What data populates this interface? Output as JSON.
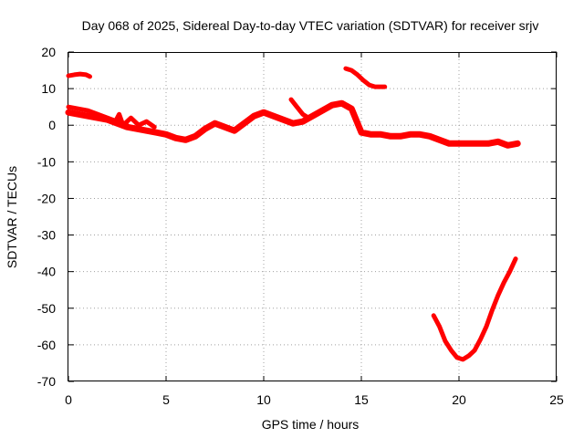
{
  "chart_data": {
    "type": "line",
    "title": "Day 068 of 2025, Sidereal Day-to-day VTEC variation (SDTVAR) for receiver srjv",
    "xlabel": "GPS time / hours",
    "ylabel": "SDTVAR / TECUs",
    "xlim": [
      0,
      25
    ],
    "ylim": [
      -70,
      20
    ],
    "xticks": [
      0,
      5,
      10,
      15,
      20,
      25
    ],
    "yticks": [
      -70,
      -60,
      -50,
      -40,
      -30,
      -20,
      -10,
      0,
      10,
      20
    ],
    "grid": true,
    "series_color": "#ff0000",
    "series": [
      {
        "name": "main-trace",
        "x": [
          0,
          0.5,
          1,
          1.5,
          2,
          2.5,
          3,
          3.5,
          4,
          4.5,
          5,
          5.5,
          6,
          6.5,
          7,
          7.5,
          8,
          8.5,
          9,
          9.5,
          10,
          10.5,
          11,
          11.5,
          12,
          12.5,
          13,
          13.5,
          14,
          14.5,
          15,
          15.5,
          16,
          16.5,
          17,
          17.5,
          18,
          18.5,
          19,
          19.5,
          20,
          20.5,
          21,
          21.5,
          22,
          22.5,
          23
        ],
        "y": [
          3.5,
          3,
          2.5,
          2,
          1.5,
          0.5,
          -0.5,
          -1,
          -1.5,
          -2,
          -2.5,
          -3.5,
          -4,
          -3,
          -1,
          0.5,
          -0.5,
          -1.5,
          0.5,
          2.5,
          3.5,
          2.5,
          1.5,
          0.5,
          1,
          2.5,
          4,
          5.5,
          6,
          4.5,
          -2,
          -2.5,
          -2.5,
          -3,
          -3,
          -2.5,
          -2.5,
          -3,
          -4,
          -5,
          -5,
          -5,
          -5,
          -5,
          -4.5,
          -5.5,
          -5
        ]
      },
      {
        "name": "upper-band",
        "x": [
          0,
          0.5,
          1,
          1.5,
          2,
          2.5,
          3
        ],
        "y": [
          5,
          4.5,
          4,
          3,
          2,
          1,
          0
        ]
      },
      {
        "name": "spike-early",
        "x": [
          2.4,
          2.6,
          2.8,
          3.2,
          3.6,
          4,
          4.4
        ],
        "y": [
          1,
          3,
          0,
          2,
          0,
          1,
          -0.5
        ]
      },
      {
        "name": "segment-start",
        "x": [
          0,
          0.3,
          0.6,
          0.9,
          1.1
        ],
        "y": [
          13.5,
          13.8,
          14,
          13.8,
          13.3
        ]
      },
      {
        "name": "segment-spike-11",
        "x": [
          11.4,
          11.7,
          12,
          12.3
        ],
        "y": [
          7,
          5,
          3,
          2
        ]
      },
      {
        "name": "segment-14-16",
        "x": [
          14.2,
          14.5,
          14.8,
          15.1,
          15.4,
          15.7,
          16,
          16.2
        ],
        "y": [
          15.5,
          15,
          13.8,
          12.3,
          11,
          10.5,
          10.5,
          10.5
        ]
      },
      {
        "name": "segment-valley",
        "x": [
          18.7,
          19,
          19.3,
          19.6,
          19.9,
          20.2,
          20.5,
          20.8,
          21.1,
          21.4,
          21.7,
          22,
          22.3,
          22.6,
          22.9
        ],
        "y": [
          -52,
          -55,
          -59,
          -61.5,
          -63.5,
          -64,
          -63,
          -61.5,
          -58.5,
          -55,
          -50.5,
          -46.5,
          -43,
          -40,
          -36.5
        ]
      }
    ]
  }
}
